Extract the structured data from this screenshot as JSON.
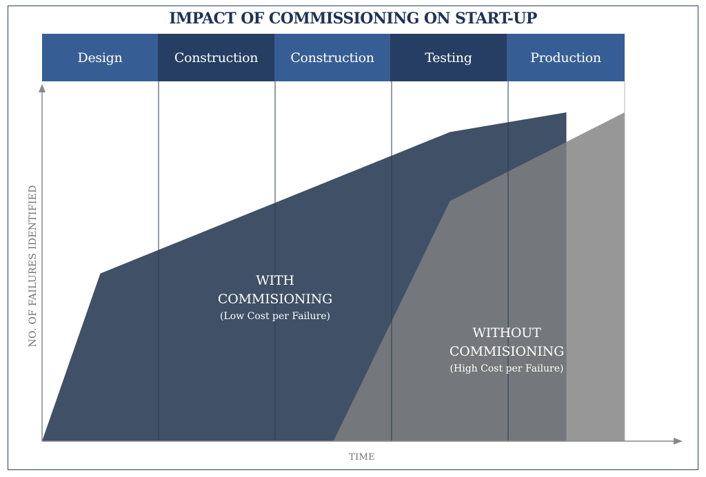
{
  "title": "IMPACT OF COMMISSIONING ON START-UP",
  "phases": [
    "Design",
    "Construction",
    "Construction",
    "Testing",
    "Production"
  ],
  "axes": {
    "ylabel": "NO. OF FAILURES IDENTIFIED",
    "xlabel": "TIME"
  },
  "colors": {
    "phase_light": "#375e94",
    "phase_dark": "#263e63",
    "with_commissioning": "#3f5067",
    "without_commissioning": "#808080",
    "axis": "#888888"
  },
  "chart_data": {
    "type": "area",
    "title": "IMPACT OF COMMISSIONING ON START-UP",
    "xlabel": "TIME",
    "ylabel": "NO. OF FAILURES IDENTIFIED",
    "xlim": [
      0,
      5
    ],
    "ylim": [
      0,
      1
    ],
    "grid": false,
    "categories": [
      "Design",
      "Construction",
      "Construction",
      "Testing",
      "Production"
    ],
    "series": [
      {
        "label_lines": [
          "WITH",
          "COMMISIONING"
        ],
        "note": "(Low Cost per Failure)",
        "color": "#3f5067",
        "x": [
          0,
          0.5,
          3.5,
          4.5,
          4.5
        ],
        "y": [
          0,
          0.51,
          0.94,
          1.0,
          0
        ]
      },
      {
        "label_lines": [
          "WITHOUT",
          "COMMISIONING"
        ],
        "note": "(High Cost per Failure)",
        "color": "#808080",
        "x": [
          2.5,
          3.5,
          5.0,
          5.0
        ],
        "y": [
          0,
          0.73,
          1.0,
          0
        ]
      }
    ]
  }
}
